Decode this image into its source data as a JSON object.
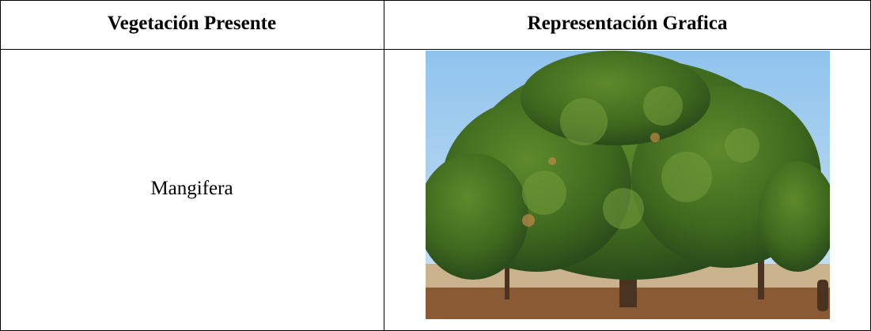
{
  "table": {
    "header": [
      "Vegetación Presente",
      "Representación Grafica"
    ],
    "rows": [
      [
        "Mangifera"
      ]
    ]
  }
}
